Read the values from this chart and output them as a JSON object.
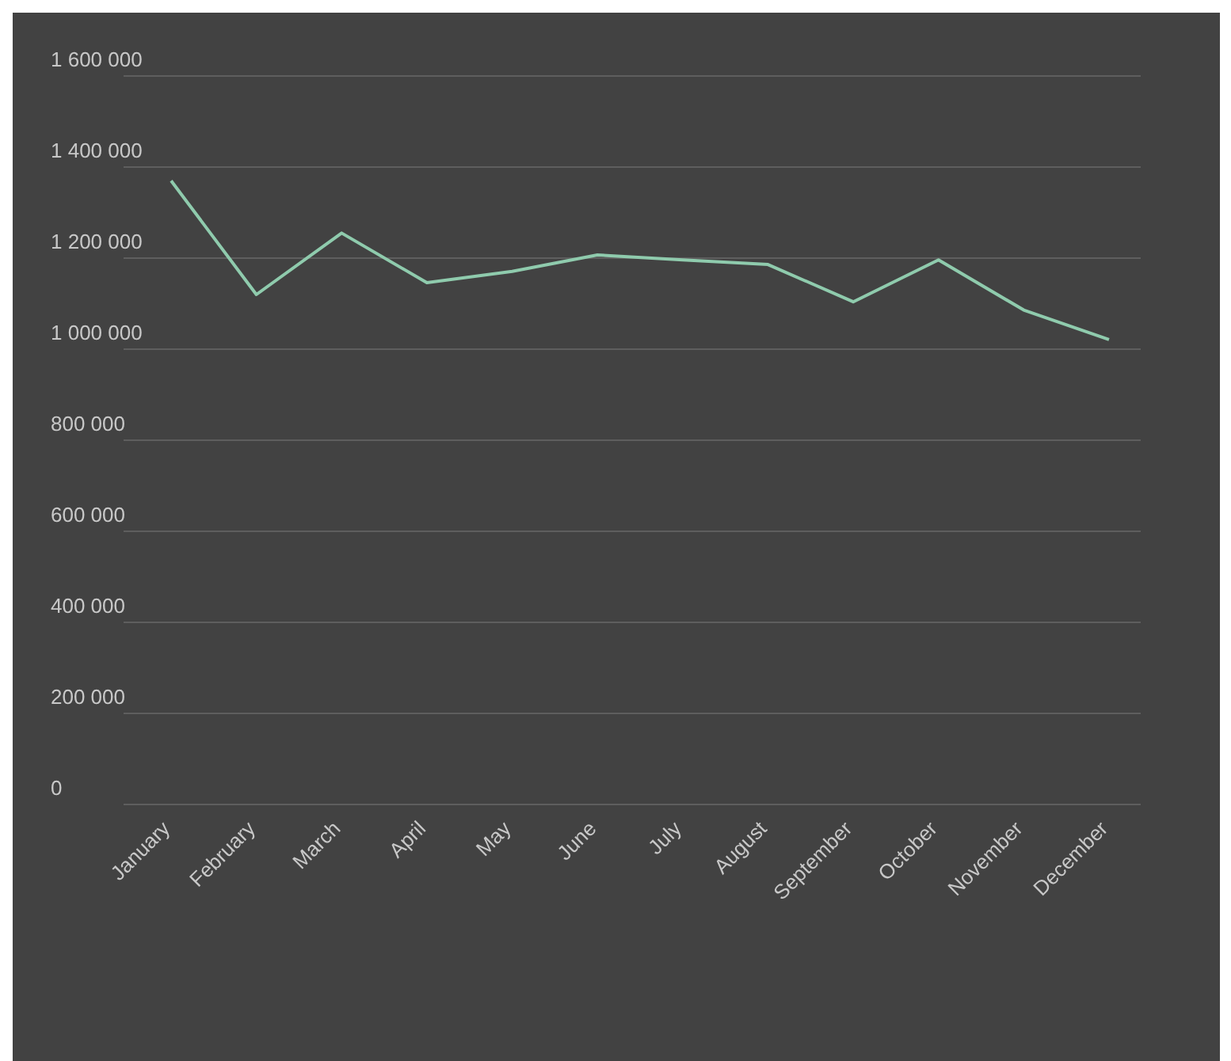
{
  "chart_data": {
    "type": "line",
    "categories": [
      "January",
      "February",
      "March",
      "April",
      "May",
      "June",
      "July",
      "August",
      "September",
      "October",
      "November",
      "December"
    ],
    "series": [
      {
        "color": "#8fcbad",
        "values": [
          1370000,
          1120000,
          1255000,
          1146000,
          1171000,
          1207000,
          1196000,
          1186000,
          1104000,
          1196000,
          1086000,
          1021000
        ]
      }
    ],
    "ylim": [
      0,
      1600000
    ],
    "yticks": [
      {
        "value": 0,
        "label": "0"
      },
      {
        "value": 200000,
        "label": "200 000"
      },
      {
        "value": 400000,
        "label": "400 000"
      },
      {
        "value": 600000,
        "label": "600 000"
      },
      {
        "value": 800000,
        "label": "800 000"
      },
      {
        "value": 1000000,
        "label": "1 000 000"
      },
      {
        "value": 1200000,
        "label": "1 200 000"
      },
      {
        "value": 1400000,
        "label": "1 400 000"
      },
      {
        "value": 1600000,
        "label": "1 600 000"
      }
    ],
    "grid": "y",
    "legend": false,
    "marker": "none",
    "line_style": "solid"
  }
}
